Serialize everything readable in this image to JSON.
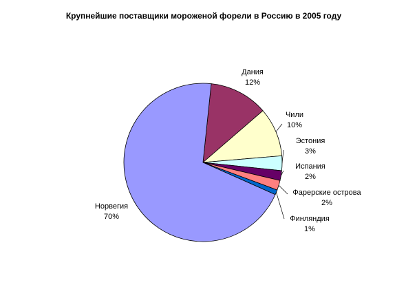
{
  "chart_data": {
    "type": "pie",
    "title": "Крупнейшие поставщики мороженой форели в Россию в 2005 году",
    "categories": [
      "Дания",
      "Чили",
      "Эстония",
      "Испания",
      "Фарерские острова",
      "Финляндия",
      "Норвегия"
    ],
    "values": [
      12,
      10,
      3,
      2,
      2,
      1,
      70
    ],
    "value_labels": [
      "12%",
      "10%",
      "3%",
      "2%",
      "2%",
      "1%",
      "70%"
    ],
    "colors": [
      "#993366",
      "#ffffcc",
      "#ccffff",
      "#660066",
      "#ff8080",
      "#0066cc",
      "#9999ff"
    ]
  }
}
